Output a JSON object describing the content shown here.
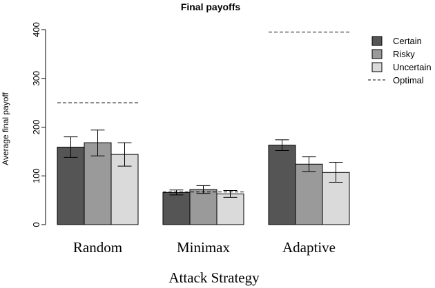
{
  "chart_data": {
    "type": "bar",
    "title": "Final payoffs",
    "xlabel": "Attack Strategy",
    "ylabel": "Average final payoff",
    "categories": [
      "Random",
      "Minimax",
      "Adaptive"
    ],
    "ylim": [
      0,
      400
    ],
    "yticks": [
      0,
      100,
      200,
      300,
      400
    ],
    "grid": false,
    "legend_position": "top-right",
    "series": [
      {
        "name": "Certain",
        "color": "#555555",
        "values": [
          159,
          66,
          163
        ],
        "err_low": [
          138,
          61,
          152
        ],
        "err_high": [
          180,
          71,
          174
        ]
      },
      {
        "name": "Risky",
        "color": "#9a9a9a",
        "values": [
          168,
          72,
          124
        ],
        "err_low": [
          141,
          64,
          109
        ],
        "err_high": [
          194,
          80,
          139
        ]
      },
      {
        "name": "Uncertain",
        "color": "#dadada",
        "values": [
          144,
          63,
          107
        ],
        "err_low": [
          120,
          56,
          87
        ],
        "err_high": [
          168,
          70,
          128
        ]
      }
    ],
    "optimal": {
      "name": "Optimal",
      "values": [
        250,
        67,
        395
      ]
    }
  }
}
